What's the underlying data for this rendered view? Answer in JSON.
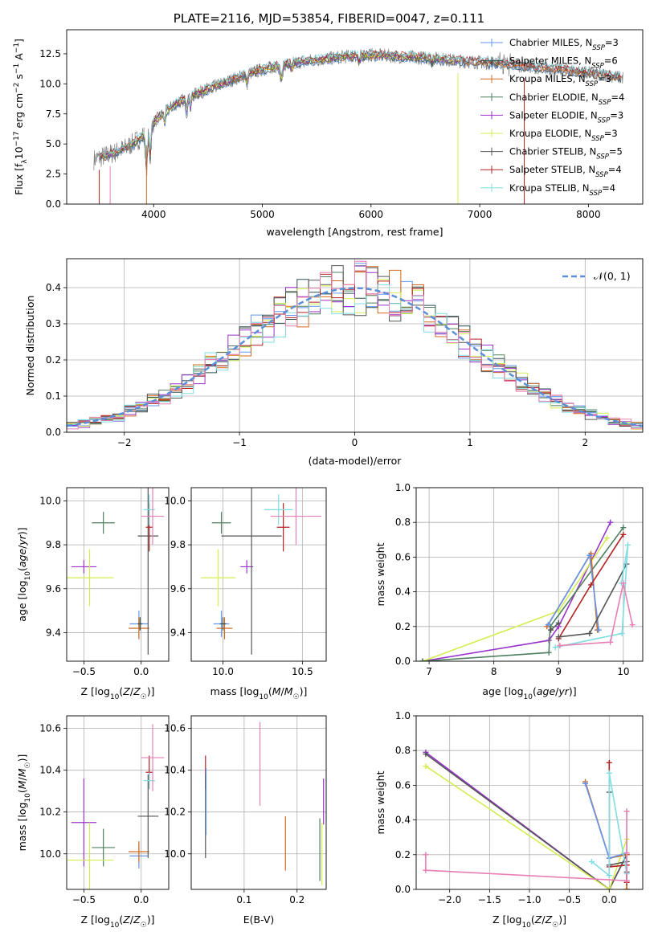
{
  "figure_title": "PLATE=2116, MJD=53854, FIBERID=0047, z=0.111",
  "colors": {
    "chabrier_miles": "#6495ed",
    "salpeter_miles": "#2f4f4f",
    "kroupa_miles": "#d2691e",
    "chabrier_elodie": "#4f7f5f",
    "salpeter_elodie": "#9932cc",
    "kroupa_elodie": "#d4ed4f",
    "chabrier_stelib": "#555555",
    "salpeter_stelib": "#b22222",
    "kroupa_stelib": "#7fdde4",
    "extra_pink": "#e87fb4",
    "data_grey": "#808080"
  },
  "chart_data": [
    {
      "id": "spectrum",
      "type": "line",
      "xlabel": "wavelength [Angstrom, rest frame]",
      "ylabel": "Flux [f_λ 10^-17 erg cm^-2 s^-1 A^-1]",
      "xlim": [
        3200,
        8500
      ],
      "ylim": [
        0,
        14.5
      ],
      "xticks": [
        "4000",
        "5000",
        "6000",
        "7000",
        "8000"
      ],
      "yticks": [
        "0.0",
        "2.5",
        "5.0",
        "7.5",
        "10.0",
        "12.5"
      ],
      "legend_position": "top-right",
      "legend": [
        {
          "base": "Chabrier MILES, N",
          "sub": "SSP",
          "tail": "=3"
        },
        {
          "base": "Salpeter MILES, N",
          "sub": "SSP",
          "tail": "=6"
        },
        {
          "base": "Kroupa MILES, N",
          "sub": "SSP",
          "tail": "=3"
        },
        {
          "base": "Chabrier ELODIE, N",
          "sub": "SSP",
          "tail": "=4"
        },
        {
          "base": "Salpeter ELODIE, N",
          "sub": "SSP",
          "tail": "=3"
        },
        {
          "base": "Kroupa ELODIE, N",
          "sub": "SSP",
          "tail": "=3"
        },
        {
          "base": "Chabrier STELIB, N",
          "sub": "SSP",
          "tail": "=5"
        },
        {
          "base": "Salpeter STELIB, N",
          "sub": "SSP",
          "tail": "=4"
        },
        {
          "base": "Kroupa STELIB, N",
          "sub": "SSP",
          "tail": "=4"
        }
      ],
      "continuum": {
        "x": [
          3450,
          3550,
          3650,
          3750,
          3850,
          3950,
          4000,
          4100,
          4200,
          4300,
          4400,
          4600,
          4800,
          5000,
          5200,
          5400,
          5600,
          5800,
          6000,
          6200,
          6400,
          6600,
          6800,
          7000,
          7200,
          7400,
          7600,
          7800,
          8000,
          8200,
          8300
        ],
        "y": [
          3.7,
          4.0,
          4.3,
          4.7,
          5.3,
          6.0,
          6.8,
          7.6,
          8.3,
          8.8,
          9.2,
          9.9,
          10.6,
          11.2,
          11.6,
          11.9,
          12.1,
          12.3,
          12.4,
          12.3,
          12.2,
          12.1,
          11.9,
          11.8,
          11.7,
          11.5,
          11.3,
          11.1,
          10.9,
          10.7,
          10.5
        ]
      },
      "dips": [
        {
          "x": 3500,
          "y": 0.0
        },
        {
          "x": 3600,
          "y": 0.0
        },
        {
          "x": 3934,
          "y": 0.0
        },
        {
          "x": 6800,
          "y": 0.0
        },
        {
          "x": 7410,
          "y": 0.0
        }
      ]
    },
    {
      "id": "residuals",
      "type": "bar",
      "xlabel": "(data-model)/error",
      "ylabel": "Normed distribution",
      "xlim": [
        -2.5,
        2.5
      ],
      "ylim": [
        0,
        0.48
      ],
      "xticks": [
        "−2",
        "−1",
        "0",
        "1",
        "2"
      ],
      "yticks": [
        "0.0",
        "0.1",
        "0.2",
        "0.3",
        "0.4"
      ],
      "grid": true,
      "legend_position": "top-right",
      "reference_label": "𝒩(0, 1)",
      "bin_width": 0.1
    },
    {
      "id": "age_vs_Z",
      "type": "scatter",
      "xlabel": "Z [log10(Z/Z☉)]",
      "ylabel": "age  [log10(age/yr)]",
      "xlim": [
        -0.65,
        0.24
      ],
      "ylim": [
        9.27,
        10.06
      ],
      "xticks": [
        "−0.5",
        "0.0"
      ],
      "yticks": [
        "9.4",
        "9.6",
        "9.8",
        "10.0"
      ],
      "points": [
        {
          "c": "chabrier_elodie",
          "x": -0.33,
          "y": 9.9,
          "xe": 0.1,
          "ye": 0.05
        },
        {
          "c": "salpeter_elodie",
          "x": -0.5,
          "y": 9.7,
          "xe": 0.11,
          "ye": 0.03
        },
        {
          "c": "kroupa_elodie",
          "x": -0.45,
          "y": 9.65,
          "xe": 0.21,
          "ye": 0.13
        },
        {
          "c": "chabrier_miles",
          "x": -0.02,
          "y": 9.44,
          "xe": 0.08,
          "ye": 0.06
        },
        {
          "c": "kroupa_miles",
          "x": -0.02,
          "y": 9.42,
          "xe": 0.09,
          "ye": 0.05
        },
        {
          "c": "chabrier_stelib",
          "x": 0.06,
          "y": 9.84,
          "xe": 0.09,
          "ye": 0.54
        },
        {
          "c": "salpeter_stelib",
          "x": 0.07,
          "y": 9.88,
          "xe": 0.03,
          "ye": 0.11
        },
        {
          "c": "kroupa_stelib",
          "x": 0.07,
          "y": 9.96,
          "xe": 0.05,
          "ye": 0.07
        },
        {
          "c": "extra_pink",
          "x": 0.1,
          "y": 9.93,
          "xe": 0.1,
          "ye": 0.13
        },
        {
          "c": "salpeter_miles",
          "x": -0.01,
          "y": 9.44,
          "xe": 0.02,
          "ye": 0.03
        }
      ]
    },
    {
      "id": "age_vs_mass",
      "type": "scatter",
      "xlabel": "mass [log10(M/M☉)]",
      "ylabel": "",
      "xlim": [
        9.8,
        10.65
      ],
      "ylim": [
        9.27,
        10.06
      ],
      "xticks": [
        "10.0",
        "10.5"
      ],
      "yticks": [
        "9.4",
        "9.6",
        "9.8",
        "10.0"
      ],
      "points": [
        {
          "c": "chabrier_elodie",
          "x": 9.99,
          "y": 9.9,
          "xe": 0.06,
          "ye": 0.05
        },
        {
          "c": "salpeter_elodie",
          "x": 10.15,
          "y": 9.7,
          "xe": 0.04,
          "ye": 0.03
        },
        {
          "c": "kroupa_elodie",
          "x": 9.97,
          "y": 9.65,
          "xe": 0.11,
          "ye": 0.13
        },
        {
          "c": "chabrier_miles",
          "x": 9.99,
          "y": 9.44,
          "xe": 0.05,
          "ye": 0.06
        },
        {
          "c": "kroupa_miles",
          "x": 10.01,
          "y": 9.42,
          "xe": 0.05,
          "ye": 0.05
        },
        {
          "c": "chabrier_stelib",
          "x": 10.18,
          "y": 9.84,
          "xe": 0.19,
          "ye": 0.54
        },
        {
          "c": "salpeter_stelib",
          "x": 10.38,
          "y": 9.88,
          "xe": 0.04,
          "ye": 0.11
        },
        {
          "c": "kroupa_stelib",
          "x": 10.35,
          "y": 9.96,
          "xe": 0.09,
          "ye": 0.07
        },
        {
          "c": "extra_pink",
          "x": 10.46,
          "y": 9.93,
          "xe": 0.16,
          "ye": 0.13
        },
        {
          "c": "salpeter_miles",
          "x": 10.0,
          "y": 9.44,
          "xe": 0.02,
          "ye": 0.03
        }
      ]
    },
    {
      "id": "weight_vs_age",
      "type": "line",
      "xlabel": "age  [log10(age/yr)]",
      "ylabel": "mass weight",
      "xlim": [
        6.8,
        10.3
      ],
      "ylim": [
        0,
        1.0
      ],
      "xticks": [
        "7",
        "8",
        "9",
        "10"
      ],
      "yticks": [
        "0.0",
        "0.2",
        "0.4",
        "0.6",
        "0.8",
        "1.0"
      ],
      "series": [
        {
          "c": "salpeter_elodie",
          "x": [
            6.9,
            8.85,
            9.0,
            9.8
          ],
          "y": [
            0.0,
            0.12,
            0.2,
            0.8
          ]
        },
        {
          "c": "kroupa_elodie",
          "x": [
            6.9,
            9.0,
            9.75
          ],
          "y": [
            0.0,
            0.29,
            0.71
          ]
        },
        {
          "c": "chabrier_elodie",
          "x": [
            6.9,
            8.85,
            8.87,
            10.0
          ],
          "y": [
            0.0,
            0.05,
            0.2,
            0.77
          ]
        },
        {
          "c": "kroupa_miles",
          "x": [
            8.82,
            9.5,
            9.6
          ],
          "y": [
            0.2,
            0.62,
            0.18
          ]
        },
        {
          "c": "chabrier_miles",
          "x": [
            8.84,
            9.48,
            9.62
          ],
          "y": [
            0.21,
            0.61,
            0.18
          ]
        },
        {
          "c": "salpeter_stelib",
          "x": [
            9.0,
            9.5,
            10.0
          ],
          "y": [
            0.13,
            0.44,
            0.73
          ]
        },
        {
          "c": "chabrier_stelib",
          "x": [
            9.0,
            9.48,
            10.05
          ],
          "y": [
            0.14,
            0.16,
            0.56
          ]
        },
        {
          "c": "kroupa_stelib",
          "x": [
            8.95,
            9.98,
            10.07,
            9.97
          ],
          "y": [
            0.08,
            0.16,
            0.67,
            0.45
          ]
        },
        {
          "c": "extra_pink",
          "x": [
            9.02,
            9.8,
            10.0,
            10.14
          ],
          "y": [
            0.09,
            0.11,
            0.45,
            0.21
          ]
        },
        {
          "c": "chabrier_stelib",
          "x": [
            8.88,
            9.0
          ],
          "y": [
            0.18,
            0.22
          ]
        }
      ]
    },
    {
      "id": "mass_vs_Z",
      "type": "scatter",
      "xlabel": "Z [log10(Z/Z☉)]",
      "ylabel": "mass [log10(M/M☉)]",
      "xlim": [
        -0.65,
        0.24
      ],
      "ylim": [
        9.83,
        10.66
      ],
      "xticks": [
        "−0.5",
        "0.0"
      ],
      "yticks": [
        "10.0",
        "10.2",
        "10.4",
        "10.6"
      ],
      "points": [
        {
          "c": "chabrier_elodie",
          "x": -0.33,
          "y": 10.03,
          "xe": 0.1,
          "ye": 0.09
        },
        {
          "c": "salpeter_elodie",
          "x": -0.5,
          "y": 10.15,
          "xe": 0.11,
          "ye": 0.21
        },
        {
          "c": "kroupa_elodie",
          "x": -0.45,
          "y": 9.97,
          "xe": 0.21,
          "ye": 0.18
        },
        {
          "c": "chabrier_miles",
          "x": -0.02,
          "y": 9.99,
          "xe": 0.08,
          "ye": 0.06
        },
        {
          "c": "kroupa_miles",
          "x": -0.02,
          "y": 10.01,
          "xe": 0.09,
          "ye": 0.05
        },
        {
          "c": "chabrier_stelib",
          "x": 0.06,
          "y": 10.18,
          "xe": 0.09,
          "ye": 0.2
        },
        {
          "c": "salpeter_stelib",
          "x": 0.07,
          "y": 10.39,
          "xe": 0.03,
          "ye": 0.08
        },
        {
          "c": "kroupa_stelib",
          "x": 0.07,
          "y": 10.35,
          "xe": 0.05,
          "ye": 0.04
        },
        {
          "c": "extra_pink",
          "x": 0.1,
          "y": 10.46,
          "xe": 0.1,
          "ye": 0.16
        }
      ]
    },
    {
      "id": "mass_vs_EBV",
      "type": "scatter",
      "xlabel": "E(B-V)",
      "ylabel": "",
      "xlim": [
        0.0,
        0.255
      ],
      "ylim": [
        9.83,
        10.66
      ],
      "xticks": [
        "0.1",
        "0.2"
      ],
      "yticks": [
        "10.0",
        "10.2",
        "10.4",
        "10.6"
      ],
      "points": [
        {
          "c": "salpeter_stelib",
          "x": 0.027,
          "y": 10.39,
          "xe": 0,
          "ye": 0.08
        },
        {
          "c": "chabrier_stelib",
          "x": 0.027,
          "y": 10.18,
          "xe": 0,
          "ye": 0.2
        },
        {
          "c": "chabrier_miles",
          "x": 0.028,
          "y": 10.25,
          "xe": 0,
          "ye": 0.16
        },
        {
          "c": "extra_pink",
          "x": 0.13,
          "y": 10.43,
          "xe": 0,
          "ye": 0.2
        },
        {
          "c": "kroupa_miles",
          "x": 0.178,
          "y": 10.05,
          "xe": 0,
          "ye": 0.13
        },
        {
          "c": "chabrier_elodie",
          "x": 0.243,
          "y": 10.02,
          "xe": 0,
          "ye": 0.15
        },
        {
          "c": "kroupa_elodie",
          "x": 0.247,
          "y": 10.0,
          "xe": 0,
          "ye": 0.15
        },
        {
          "c": "salpeter_elodie",
          "x": 0.25,
          "y": 10.25,
          "xe": 0,
          "ye": 0.11
        }
      ]
    },
    {
      "id": "weight_vs_Z",
      "type": "line",
      "xlabel": "Z [log10(Z/Z☉)]",
      "ylabel": "mass weight",
      "xlim": [
        -2.42,
        0.42
      ],
      "ylim": [
        0,
        1.0
      ],
      "xticks": [
        "−2.0",
        "−1.5",
        "−1.0",
        "−0.5",
        "0.0"
      ],
      "yticks": [
        "0.0",
        "0.2",
        "0.4",
        "0.6",
        "0.8",
        "1.0"
      ],
      "series": [
        {
          "c": "salpeter_elodie",
          "x": [
            -2.3,
            0.0,
            0.22,
            0.22
          ],
          "y": [
            0.79,
            0.0,
            0.2,
            0.0
          ]
        },
        {
          "c": "chabrier_stelib",
          "x": [
            -2.3,
            0.0,
            0.22,
            0.22
          ],
          "y": [
            0.78,
            0.0,
            0.2,
            0.05
          ]
        },
        {
          "c": "kroupa_elodie",
          "x": [
            -2.3,
            0.0,
            0.22,
            0.22
          ],
          "y": [
            0.71,
            0.0,
            0.29,
            0.0
          ]
        },
        {
          "c": "kroupa_miles",
          "x": [
            -0.3,
            0.0,
            0.22,
            0.22
          ],
          "y": [
            0.62,
            0.18,
            0.2,
            0.0
          ]
        },
        {
          "c": "chabrier_miles",
          "x": [
            -0.3,
            0.0,
            0.22
          ],
          "y": [
            0.61,
            0.18,
            0.21
          ]
        },
        {
          "c": "salpeter_stelib",
          "x": [
            0.0,
            0.0,
            0.22,
            0.22
          ],
          "y": [
            0.73,
            0.13,
            0.14,
            0.04
          ]
        },
        {
          "c": "chabrier_stelib",
          "x": [
            0.0,
            0.0,
            0.22,
            0.22
          ],
          "y": [
            0.56,
            0.14,
            0.16,
            0.1
          ]
        },
        {
          "c": "kroupa_stelib",
          "x": [
            -0.22,
            0.0,
            0.0,
            0.22,
            0.22
          ],
          "y": [
            0.16,
            0.08,
            0.67,
            0.09,
            0.45
          ]
        },
        {
          "c": "extra_pink",
          "x": [
            -2.3,
            -2.3,
            0.22,
            0.22,
            0.22
          ],
          "y": [
            0.2,
            0.11,
            0.05,
            0.45,
            0.21
          ]
        }
      ]
    }
  ]
}
